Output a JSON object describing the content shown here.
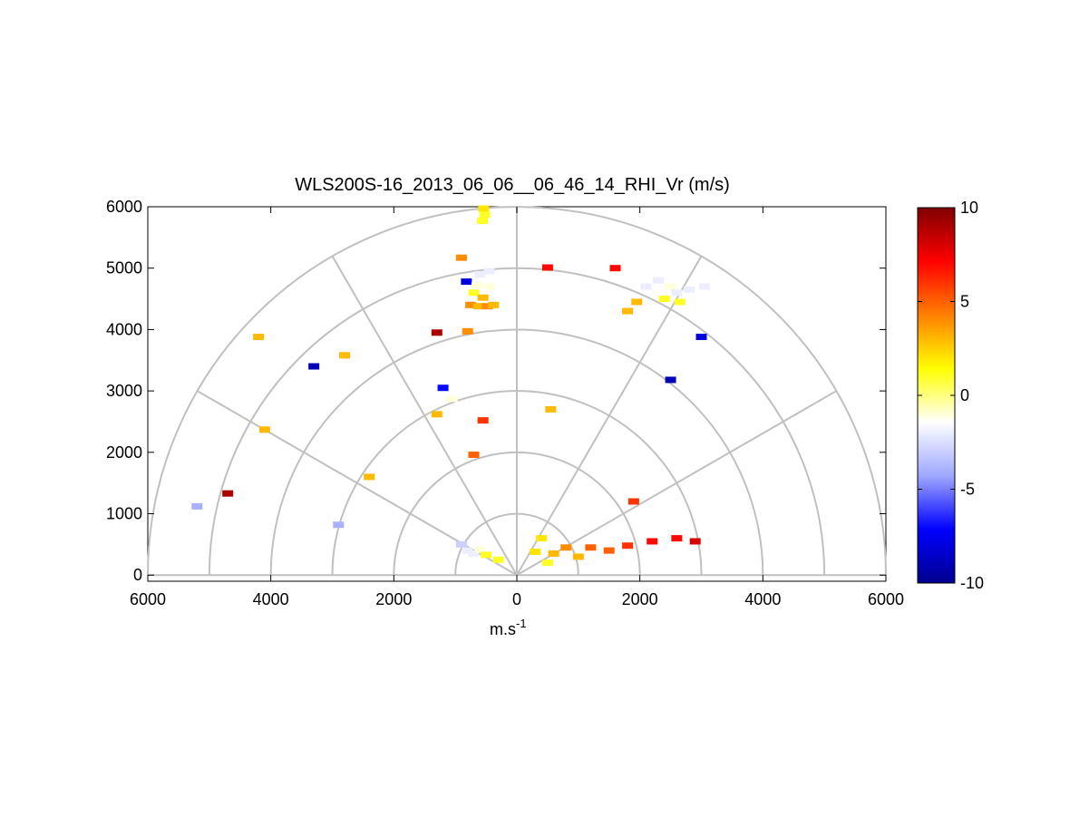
{
  "chart_data": {
    "type": "scatter",
    "title": "WLS200S-16_2013_06_06__06_46_14_RHI_Vr (m/s)",
    "xlabel_base": "m.s",
    "xlabel_exp": "-1",
    "ylabel": "",
    "x_ticks": [
      "6000",
      "4000",
      "2000",
      "0",
      "2000",
      "4000",
      "6000"
    ],
    "y_ticks": [
      "0",
      "1000",
      "2000",
      "3000",
      "4000",
      "5000",
      "6000"
    ],
    "xlim": [
      -6000,
      6000
    ],
    "ylim": [
      -100,
      6000
    ],
    "grid": true,
    "polar_rings_m": [
      1000,
      2000,
      3000,
      4000,
      5000,
      6000
    ],
    "polar_spokes_deg": [
      30,
      60,
      90,
      120,
      150
    ],
    "colorbar": {
      "label_ticks": [
        "10",
        "5",
        "0",
        "-5",
        "-10"
      ],
      "range": [
        -10,
        10
      ],
      "colors": [
        "#00008f",
        "#0000ff",
        "#9ea8ff",
        "#ffffff",
        "#ffff00",
        "#ff8000",
        "#ff0000",
        "#800000"
      ]
    },
    "points": [
      {
        "x": 540,
        "y": 5970,
        "v": 2
      },
      {
        "x": 520,
        "y": 5870,
        "v": 1
      },
      {
        "x": 560,
        "y": 5770,
        "v": 1
      },
      {
        "x": 900,
        "y": 5170,
        "v": 4
      },
      {
        "x": 820,
        "y": 4780,
        "v": -8
      },
      {
        "x": 600,
        "y": 4900,
        "v": -2
      },
      {
        "x": 450,
        "y": 4950,
        "v": -2
      },
      {
        "x": 650,
        "y": 4720,
        "v": -1
      },
      {
        "x": 450,
        "y": 4700,
        "v": -1
      },
      {
        "x": 700,
        "y": 4600,
        "v": 1
      },
      {
        "x": 550,
        "y": 4520,
        "v": 3
      },
      {
        "x": 750,
        "y": 4400,
        "v": 4
      },
      {
        "x": 620,
        "y": 4380,
        "v": 3
      },
      {
        "x": 480,
        "y": 4380,
        "v": 4
      },
      {
        "x": 380,
        "y": 4400,
        "v": 3
      },
      {
        "x": -500,
        "y": 5010,
        "v": 7
      },
      {
        "x": -1600,
        "y": 5000,
        "v": 7
      },
      {
        "x": -2100,
        "y": 4700,
        "v": -2
      },
      {
        "x": -2300,
        "y": 4800,
        "v": -2
      },
      {
        "x": -2500,
        "y": 4700,
        "v": -1
      },
      {
        "x": -2600,
        "y": 4600,
        "v": -2
      },
      {
        "x": -2800,
        "y": 4650,
        "v": -2
      },
      {
        "x": -3050,
        "y": 4700,
        "v": -2
      },
      {
        "x": -2400,
        "y": 4500,
        "v": 1
      },
      {
        "x": -2650,
        "y": 4450,
        "v": 1
      },
      {
        "x": -1800,
        "y": 4300,
        "v": 3
      },
      {
        "x": -1950,
        "y": 4450,
        "v": 3
      },
      {
        "x": -3000,
        "y": 3880,
        "v": -8
      },
      {
        "x": -2500,
        "y": 3180,
        "v": -9
      },
      {
        "x": 1300,
        "y": 3950,
        "v": 9
      },
      {
        "x": 800,
        "y": 3970,
        "v": 4
      },
      {
        "x": 4200,
        "y": 3880,
        "v": 3
      },
      {
        "x": 3300,
        "y": 3400,
        "v": -9
      },
      {
        "x": 2800,
        "y": 3580,
        "v": 3
      },
      {
        "x": 4100,
        "y": 2370,
        "v": 3
      },
      {
        "x": 5200,
        "y": 1120,
        "v": -4
      },
      {
        "x": 4700,
        "y": 1330,
        "v": 9
      },
      {
        "x": 2400,
        "y": 1600,
        "v": 3
      },
      {
        "x": 2900,
        "y": 820,
        "v": -4
      },
      {
        "x": 1200,
        "y": 3050,
        "v": -7
      },
      {
        "x": 1050,
        "y": 2870,
        "v": -1
      },
      {
        "x": 1300,
        "y": 2620,
        "v": 3
      },
      {
        "x": 550,
        "y": 2520,
        "v": 6
      },
      {
        "x": -550,
        "y": 2700,
        "v": 3
      },
      {
        "x": 700,
        "y": 1960,
        "v": 5
      },
      {
        "x": -1900,
        "y": 1200,
        "v": 6
      },
      {
        "x": 900,
        "y": 500,
        "v": -3
      },
      {
        "x": 800,
        "y": 400,
        "v": -2
      },
      {
        "x": 700,
        "y": 350,
        "v": -2
      },
      {
        "x": 600,
        "y": 420,
        "v": -1
      },
      {
        "x": 500,
        "y": 330,
        "v": 1
      },
      {
        "x": 300,
        "y": 250,
        "v": 1
      },
      {
        "x": -300,
        "y": 380,
        "v": 2
      },
      {
        "x": -400,
        "y": 600,
        "v": 2
      },
      {
        "x": -600,
        "y": 350,
        "v": 3
      },
      {
        "x": -800,
        "y": 450,
        "v": 4
      },
      {
        "x": -1200,
        "y": 450,
        "v": 5
      },
      {
        "x": -1500,
        "y": 400,
        "v": 5
      },
      {
        "x": -1800,
        "y": 480,
        "v": 6
      },
      {
        "x": -2200,
        "y": 550,
        "v": 7
      },
      {
        "x": -2600,
        "y": 600,
        "v": 7
      },
      {
        "x": -2900,
        "y": 550,
        "v": 8
      },
      {
        "x": -1000,
        "y": 300,
        "v": 3
      },
      {
        "x": -500,
        "y": 200,
        "v": 1
      }
    ]
  }
}
